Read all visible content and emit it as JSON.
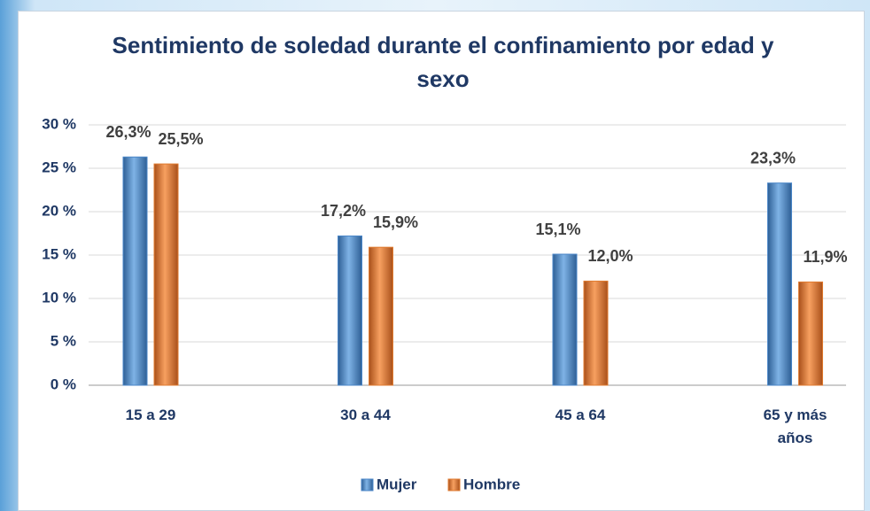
{
  "chart_data": {
    "type": "bar",
    "title": "Sentimiento de soledad durante el confinamiento por edad y sexo",
    "categories": [
      "15 a 29",
      "30 a 44",
      "45 a 64",
      "65 y más años"
    ],
    "series": [
      {
        "name": "Mujer",
        "color": "#4a86c8",
        "values": [
          26.3,
          17.2,
          15.1,
          23.3
        ],
        "value_labels": [
          "26,3%",
          "17,2%",
          "15,1%",
          "23,3%"
        ]
      },
      {
        "name": "Hombre",
        "color": "#e07b30",
        "values": [
          25.5,
          15.9,
          12.0,
          11.9
        ],
        "value_labels": [
          "25,5%",
          "15,9%",
          "12,0%",
          "11,9%"
        ]
      }
    ],
    "ylim": [
      0,
      30
    ],
    "yticks": [
      {
        "value": 0,
        "label": "0 %"
      },
      {
        "value": 5,
        "label": "5 %"
      },
      {
        "value": 10,
        "label": "10 %"
      },
      {
        "value": 15,
        "label": "15 %"
      },
      {
        "value": 20,
        "label": "20 %"
      },
      {
        "value": 25,
        "label": "25 %"
      },
      {
        "value": 30,
        "label": "30 %"
      }
    ],
    "grid": true,
    "legend": "bottom"
  }
}
